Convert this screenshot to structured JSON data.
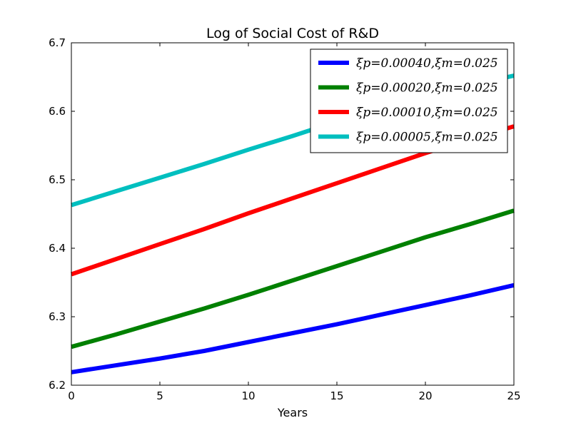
{
  "chart_data": {
    "type": "line",
    "title": "Log of Social Cost of R&D",
    "xlabel": "Years",
    "ylabel": "",
    "xlim": [
      0,
      25
    ],
    "ylim": [
      6.2,
      6.7
    ],
    "xticks": [
      0,
      5,
      10,
      15,
      20,
      25
    ],
    "yticks": [
      6.2,
      6.3,
      6.4,
      6.5,
      6.6,
      6.7
    ],
    "xtick_labels": [
      "0",
      "5",
      "10",
      "15",
      "20",
      "25"
    ],
    "ytick_labels": [
      "6.2",
      "6.3",
      "6.4",
      "6.5",
      "6.6",
      "6.7"
    ],
    "grid": false,
    "legend_position": "top-right",
    "x": [
      0,
      2.5,
      5,
      7.5,
      10,
      12.5,
      15,
      17.5,
      20,
      22.5,
      25
    ],
    "series": [
      {
        "name": "ξp=0.00040,ξm=0.025",
        "color": "#0000ff",
        "values": [
          6.219,
          6.229,
          6.239,
          6.25,
          6.263,
          6.276,
          6.289,
          6.303,
          6.317,
          6.331,
          6.346
        ]
      },
      {
        "name": "ξp=0.00020,ξm=0.025",
        "color": "#008000",
        "values": [
          6.256,
          6.274,
          6.293,
          6.312,
          6.332,
          6.353,
          6.374,
          6.395,
          6.416,
          6.435,
          6.455
        ]
      },
      {
        "name": "ξp=0.00010,ξm=0.025",
        "color": "#ff0000",
        "values": [
          6.362,
          6.384,
          6.406,
          6.428,
          6.451,
          6.473,
          6.495,
          6.517,
          6.539,
          6.559,
          6.578
        ]
      },
      {
        "name": "ξp=0.00005,ξm=0.025",
        "color": "#00bfbf",
        "values": [
          6.463,
          6.483,
          6.503,
          6.523,
          6.544,
          6.564,
          6.585,
          6.606,
          6.624,
          6.638,
          6.652
        ]
      }
    ]
  }
}
